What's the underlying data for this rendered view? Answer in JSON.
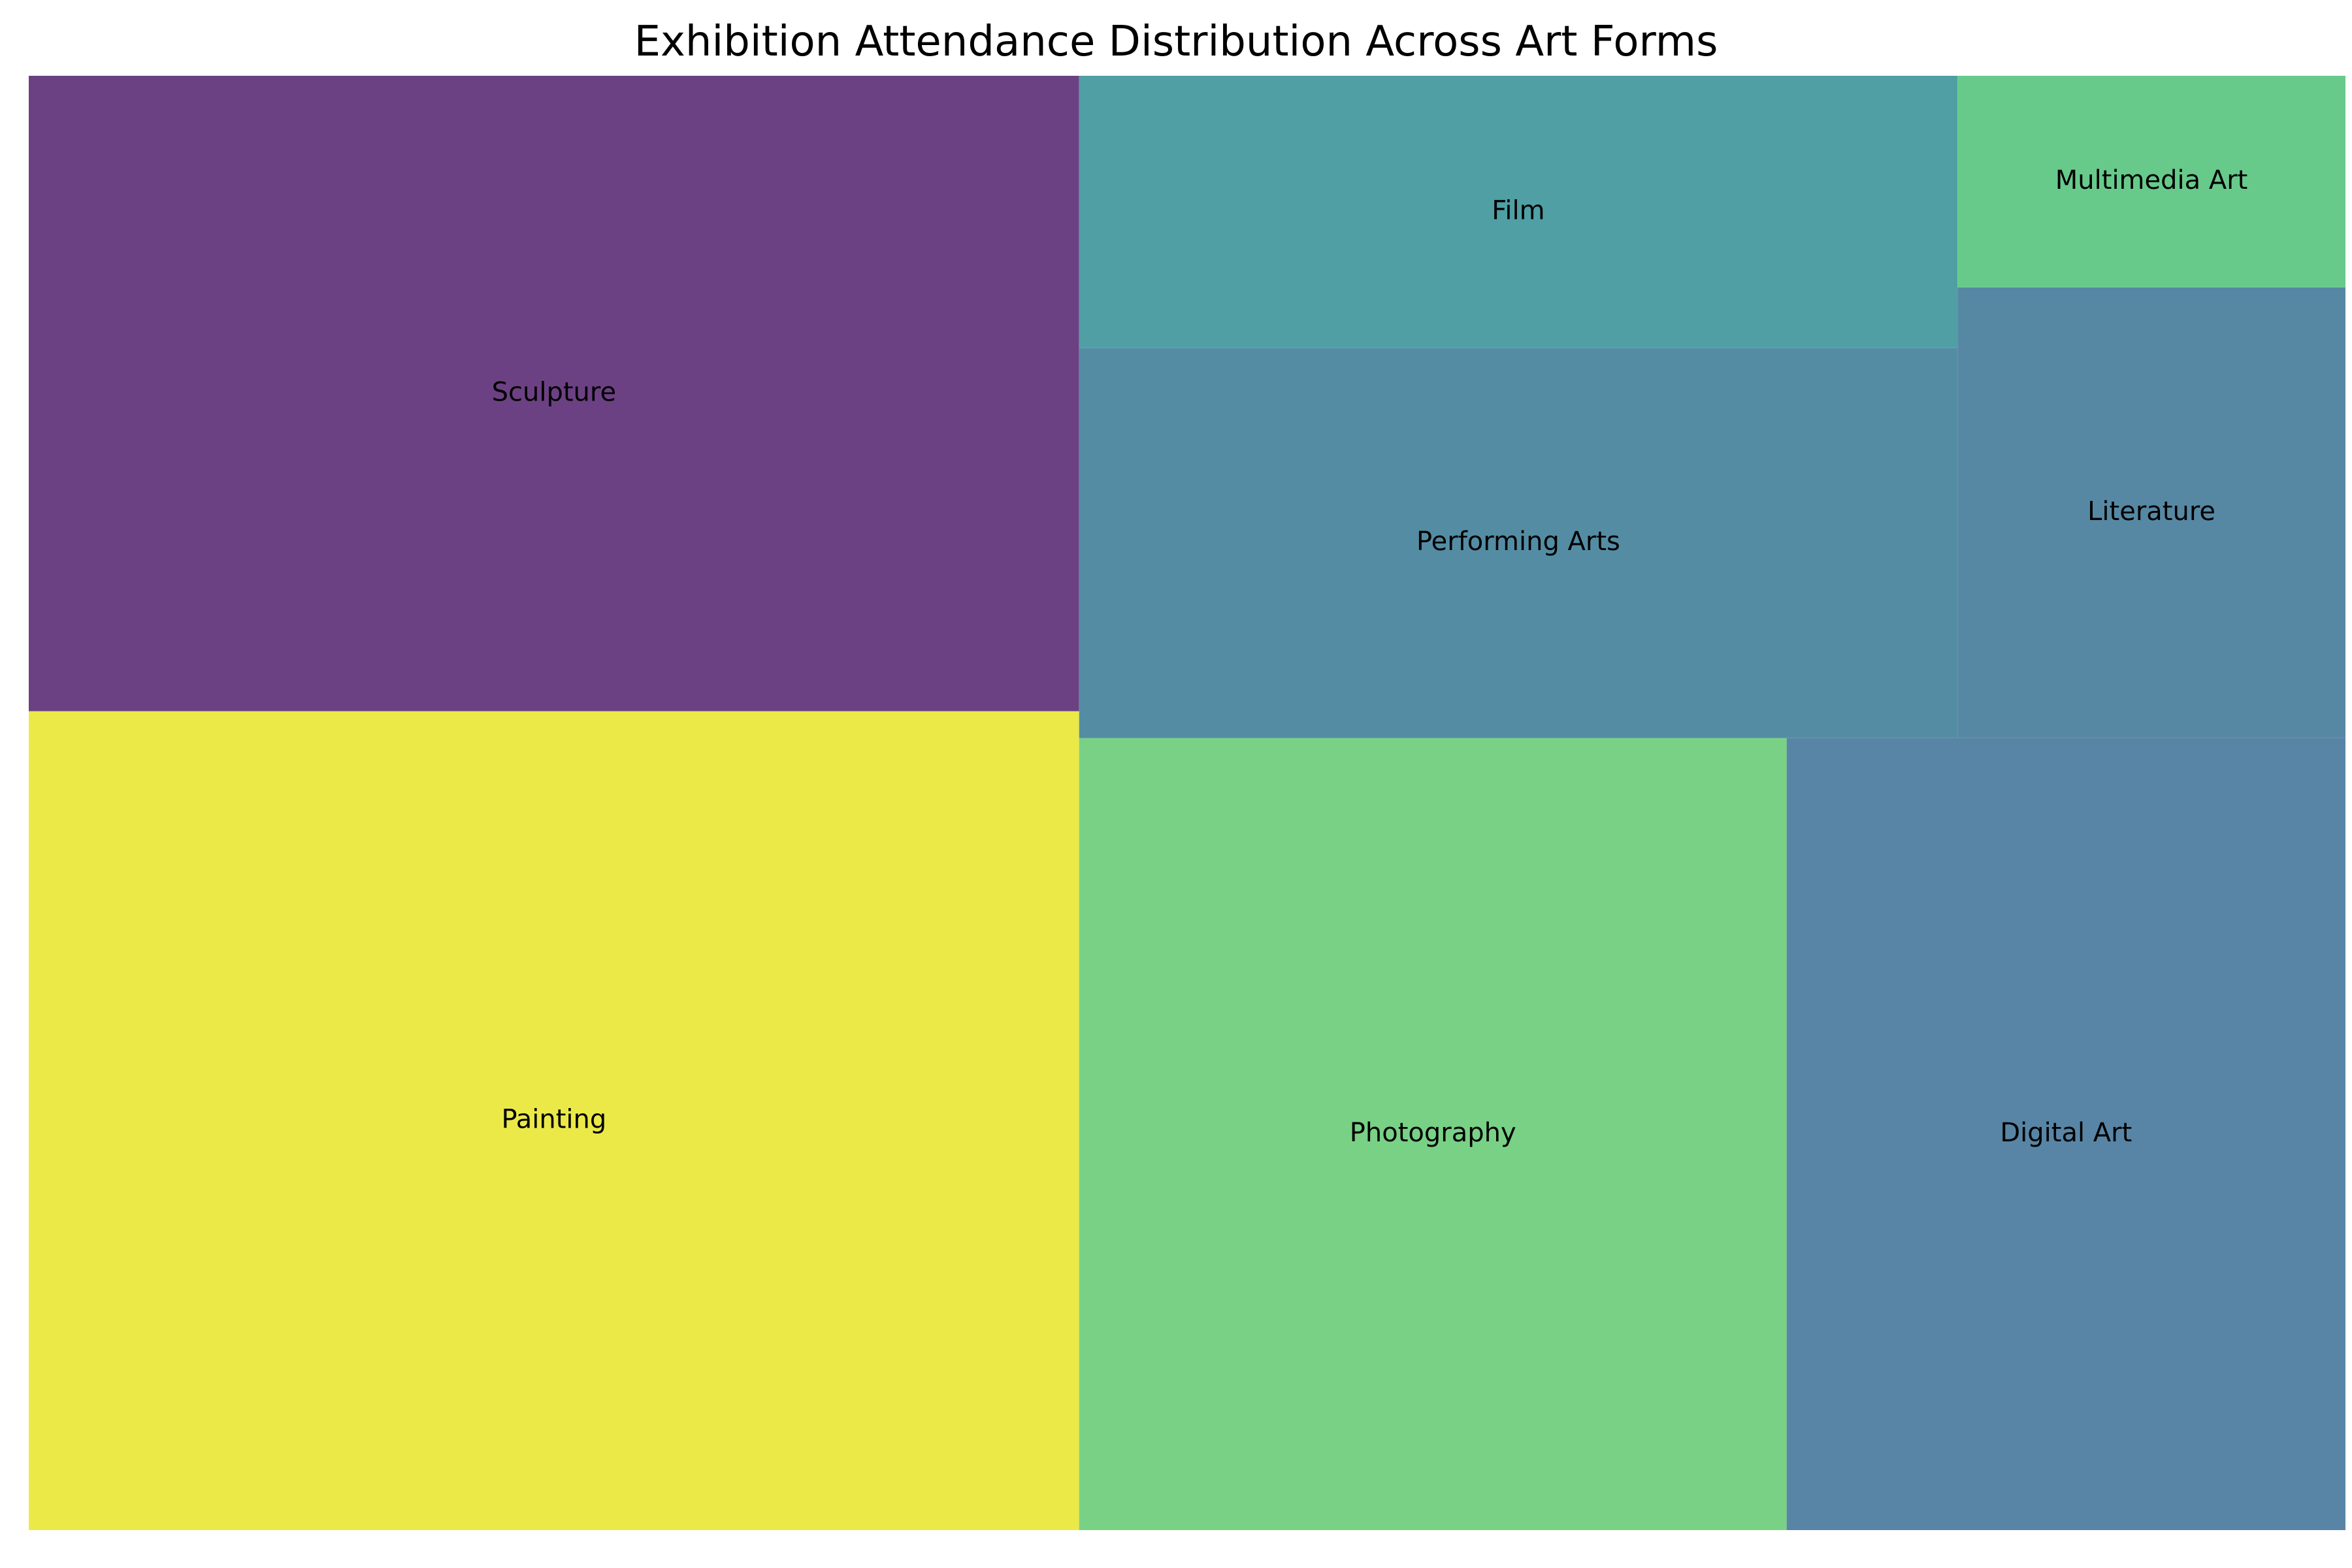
{
  "chart_data": {
    "type": "treemap",
    "title": "Exhibition Attendance Distribution Across Art Forms",
    "value_unit": "share of total tile area (%)",
    "tiles": [
      {
        "label": "Painting",
        "value": 24.1,
        "color": "#EBE948"
      },
      {
        "label": "Sculpture",
        "value": 18.7,
        "color": "#6C4183"
      },
      {
        "label": "Photography",
        "value": 15.7,
        "color": "#79D186"
      },
      {
        "label": "Digital Art",
        "value": 12.4,
        "color": "#5885A5"
      },
      {
        "label": "Performing Arts",
        "value": 9.6,
        "color": "#548DA3"
      },
      {
        "label": "Film",
        "value": 6.7,
        "color": "#4F9FA4"
      },
      {
        "label": "Literature",
        "value": 4.9,
        "color": "#5788A3"
      },
      {
        "label": "Multimedia Art",
        "value": 2.3,
        "color": "#67CA8B"
      }
    ]
  }
}
